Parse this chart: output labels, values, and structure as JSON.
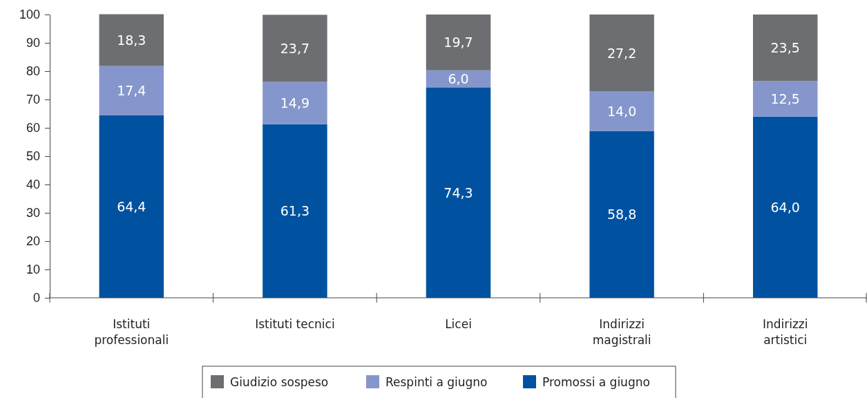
{
  "chart_data": {
    "type": "bar",
    "stacked": true,
    "categories": [
      "Istituti\nprofessionali",
      "Istituti tecnici",
      "Licei",
      "Indirizzi\nmagistrali",
      "Indirizzi\nartistici"
    ],
    "series": [
      {
        "name": "Promossi a giugno",
        "color": "#0052a1",
        "values": [
          64.4,
          61.3,
          74.3,
          58.8,
          64.0
        ],
        "value_labels": [
          "64,4",
          "61,3",
          "74,3",
          "58,8",
          "64,0"
        ]
      },
      {
        "name": "Respinti a giugno",
        "color": "#8496cc",
        "values": [
          17.4,
          14.9,
          6.0,
          14.0,
          12.5
        ],
        "value_labels": [
          "17,4",
          "14,9",
          "6,0",
          "14,0",
          "12,5"
        ]
      },
      {
        "name": "Giudizio sospeso",
        "color": "#6d6e71",
        "values": [
          18.3,
          23.7,
          19.7,
          27.2,
          23.5
        ],
        "value_labels": [
          "18,3",
          "23,7",
          "19,7",
          "27,2",
          "23,5"
        ]
      }
    ],
    "ylim": [
      0,
      100
    ],
    "yticks": [
      0,
      10,
      20,
      30,
      40,
      50,
      60,
      70,
      80,
      90,
      100
    ],
    "grid": false,
    "legend": "bottom"
  }
}
